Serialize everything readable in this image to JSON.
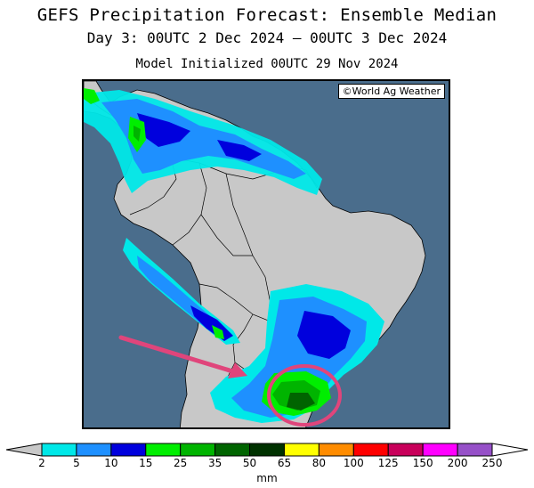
{
  "title": "GEFS Precipitation Forecast: Ensemble Median",
  "subtitle": "Day 3: 00UTC 2 Dec 2024 — 00UTC 3 Dec 2024",
  "init": "Model Initialized 00UTC 29 Nov 2024",
  "credit": "©World Ag Weather",
  "colorbar": {
    "unit": "mm",
    "ticks": [
      "2",
      "5",
      "10",
      "15",
      "25",
      "35",
      "50",
      "65",
      "80",
      "100",
      "125",
      "150",
      "200",
      "250"
    ],
    "colors": [
      "#00e8e8",
      "#1e90ff",
      "#0000dd",
      "#00ee00",
      "#00b400",
      "#006400",
      "#003200",
      "#ffff00",
      "#ff8c00",
      "#ff0000",
      "#c8005a",
      "#ff00ff",
      "#9650c8"
    ],
    "below_color": "#c8c8c8",
    "above_color": "#ffffff"
  },
  "map": {
    "ocean_color": "#4a6d8c",
    "land_color": "#c8c8c8",
    "annotation_color": "#e0457b",
    "annotation": "arrow pointing to circled heavy-rain area over southern Brazil / Uruguay"
  }
}
